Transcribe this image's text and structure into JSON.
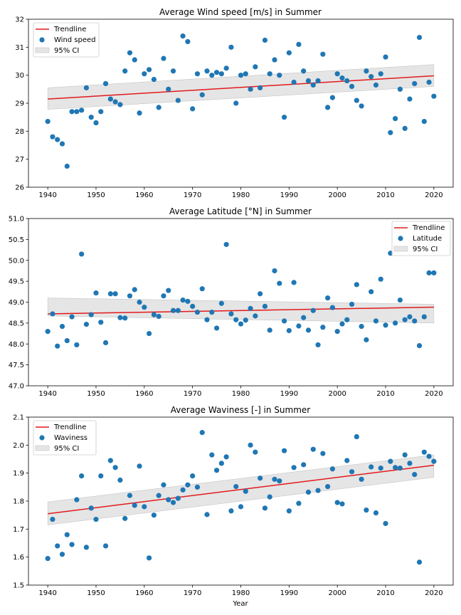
{
  "figure": {
    "xlabel": "Year"
  },
  "chart_data": [
    {
      "type": "scatter",
      "title": "Average Wind speed [m/s] in Summer",
      "xlabel": "",
      "ylabel": "",
      "xlim": [
        1936,
        2024
      ],
      "ylim": [
        26,
        32
      ],
      "xticks": [
        1940,
        1950,
        1960,
        1970,
        1980,
        1990,
        2000,
        2010,
        2020
      ],
      "yticks": [
        26,
        27,
        28,
        29,
        30,
        31,
        32
      ],
      "ytick_labels": [
        "26",
        "27",
        "28",
        "29",
        "30",
        "31",
        "32"
      ],
      "grid": false,
      "legend_position": "upper-left",
      "legend": {
        "trend": "Trendline",
        "scatter": "Wind speed",
        "ci": "95% CI"
      },
      "colors": {
        "points": "#1f77b4",
        "trend": "#e31a1c",
        "ci": "#d3d3d3"
      },
      "trend": {
        "x": [
          1940,
          2020
        ],
        "y": [
          29.15,
          29.98
        ]
      },
      "ci": {
        "x": [
          1940,
          2020
        ],
        "lower": [
          28.78,
          29.6
        ],
        "upper": [
          29.55,
          30.38
        ]
      },
      "points": {
        "x": [
          1940,
          1941,
          1942,
          1943,
          1944,
          1945,
          1946,
          1947,
          1948,
          1949,
          1950,
          1951,
          1952,
          1953,
          1954,
          1955,
          1956,
          1957,
          1958,
          1959,
          1960,
          1961,
          1962,
          1963,
          1964,
          1965,
          1966,
          1967,
          1968,
          1969,
          1970,
          1971,
          1972,
          1973,
          1974,
          1975,
          1976,
          1977,
          1978,
          1979,
          1980,
          1981,
          1982,
          1983,
          1984,
          1985,
          1986,
          1987,
          1988,
          1989,
          1990,
          1991,
          1992,
          1993,
          1994,
          1995,
          1996,
          1997,
          1998,
          1999,
          2000,
          2001,
          2002,
          2003,
          2004,
          2005,
          2006,
          2007,
          2008,
          2009,
          2010,
          2011,
          2012,
          2013,
          2014,
          2015,
          2016,
          2017,
          2018,
          2019,
          2020
        ],
        "y": [
          28.35,
          27.8,
          27.7,
          27.55,
          26.75,
          28.7,
          28.7,
          28.75,
          29.55,
          28.5,
          28.3,
          28.7,
          29.7,
          29.15,
          29.05,
          28.95,
          30.15,
          30.8,
          30.55,
          28.65,
          30.05,
          30.2,
          29.85,
          28.85,
          30.6,
          29.5,
          30.15,
          29.1,
          31.4,
          31.2,
          28.8,
          30.05,
          29.3,
          30.15,
          30.0,
          30.1,
          30.05,
          30.25,
          31.0,
          29.0,
          30.0,
          30.05,
          29.5,
          30.3,
          29.55,
          31.25,
          30.05,
          30.55,
          30.0,
          28.5,
          30.8,
          29.75,
          31.1,
          30.15,
          29.8,
          29.65,
          29.8,
          30.75,
          28.85,
          29.2,
          30.05,
          29.9,
          29.8,
          29.6,
          29.1,
          28.9,
          30.15,
          29.95,
          29.65,
          30.05,
          30.65,
          27.95,
          28.45,
          29.5,
          28.1,
          29.15,
          29.7,
          31.35,
          28.35,
          29.75,
          29.25
        ]
      }
    },
    {
      "type": "scatter",
      "title": "Average Latitude [°N] in Summer",
      "xlabel": "",
      "ylabel": "",
      "xlim": [
        1936,
        2024
      ],
      "ylim": [
        47.0,
        51.0
      ],
      "xticks": [
        1940,
        1950,
        1960,
        1970,
        1980,
        1990,
        2000,
        2010,
        2020
      ],
      "yticks": [
        47.0,
        47.5,
        48.0,
        48.5,
        49.0,
        49.5,
        50.0,
        50.5,
        51.0
      ],
      "ytick_labels": [
        "47.0",
        "47.5",
        "48.0",
        "48.5",
        "49.0",
        "49.5",
        "50.0",
        "50.5",
        "51.0"
      ],
      "grid": false,
      "legend_position": "upper-right",
      "legend": {
        "trend": "Trendline",
        "scatter": "Latitude",
        "ci": "95% CI"
      },
      "colors": {
        "points": "#1f77b4",
        "trend": "#e31a1c",
        "ci": "#d3d3d3"
      },
      "trend": {
        "x": [
          1940,
          2020
        ],
        "y": [
          48.72,
          48.88
        ]
      },
      "ci": {
        "x": [
          2020,
          1940
        ],
        "lower": [
          48.5,
          48.67
        ],
        "upper": [
          48.95,
          49.1
        ]
      },
      "points": {
        "x": [
          1940,
          1941,
          1942,
          1943,
          1944,
          1945,
          1946,
          1947,
          1948,
          1949,
          1950,
          1951,
          1952,
          1953,
          1954,
          1955,
          1956,
          1957,
          1958,
          1959,
          1960,
          1961,
          1962,
          1963,
          1964,
          1965,
          1966,
          1967,
          1968,
          1969,
          1970,
          1971,
          1972,
          1973,
          1974,
          1975,
          1976,
          1977,
          1978,
          1979,
          1980,
          1981,
          1982,
          1983,
          1984,
          1985,
          1986,
          1987,
          1988,
          1989,
          1990,
          1991,
          1992,
          1993,
          1994,
          1995,
          1996,
          1997,
          1998,
          1999,
          2000,
          2001,
          2002,
          2003,
          2004,
          2005,
          2006,
          2007,
          2008,
          2009,
          2010,
          2011,
          2012,
          2013,
          2014,
          2015,
          2016,
          2017,
          2018,
          2019,
          2020
        ],
        "y": [
          48.3,
          48.72,
          47.95,
          48.42,
          48.08,
          48.65,
          47.98,
          50.15,
          48.47,
          48.7,
          49.22,
          48.52,
          48.03,
          49.2,
          49.2,
          48.63,
          48.62,
          49.15,
          49.3,
          49.0,
          48.88,
          48.25,
          48.7,
          48.66,
          49.15,
          49.28,
          48.8,
          48.8,
          49.05,
          49.02,
          48.9,
          48.76,
          49.32,
          48.58,
          48.76,
          48.38,
          48.97,
          50.38,
          48.72,
          48.58,
          48.48,
          48.57,
          48.85,
          48.67,
          49.2,
          48.9,
          48.33,
          49.75,
          49.45,
          48.55,
          48.32,
          49.47,
          48.43,
          48.63,
          48.33,
          48.8,
          47.98,
          48.4,
          49.1,
          48.87,
          48.3,
          48.48,
          48.58,
          48.95,
          49.42,
          48.42,
          48.1,
          49.25,
          48.55,
          49.55,
          48.45,
          50.17,
          48.5,
          49.05,
          48.58,
          48.65,
          48.55,
          47.96,
          48.65,
          49.7,
          49.7
        ]
      }
    },
    {
      "type": "scatter",
      "title": "Average Waviness [-] in Summer",
      "xlabel": "Year",
      "ylabel": "",
      "xlim": [
        1936,
        2024
      ],
      "ylim": [
        1.5,
        2.1
      ],
      "xticks": [
        1940,
        1950,
        1960,
        1970,
        1980,
        1990,
        2000,
        2010,
        2020
      ],
      "yticks": [
        1.5,
        1.6,
        1.7,
        1.8,
        1.9,
        2.0,
        2.1
      ],
      "ytick_labels": [
        "1.5",
        "1.6",
        "1.7",
        "1.8",
        "1.9",
        "2.0",
        "2.1"
      ],
      "grid": false,
      "legend_position": "upper-left",
      "legend": {
        "trend": "Trendline",
        "scatter": "Waviness",
        "ci": "95% CI"
      },
      "colors": {
        "points": "#1f77b4",
        "trend": "#e31a1c",
        "ci": "#d3d3d3"
      },
      "trend": {
        "x": [
          1940,
          2020
        ],
        "y": [
          1.755,
          1.928
        ]
      },
      "ci": {
        "x": [
          1940,
          2020
        ],
        "lower": [
          1.715,
          1.885
        ],
        "upper": [
          1.797,
          1.965
        ]
      },
      "points": {
        "x": [
          1940,
          1941,
          1942,
          1943,
          1944,
          1945,
          1946,
          1947,
          1948,
          1949,
          1950,
          1951,
          1952,
          1953,
          1954,
          1955,
          1956,
          1957,
          1958,
          1959,
          1960,
          1961,
          1962,
          1963,
          1964,
          1965,
          1966,
          1967,
          1968,
          1969,
          1970,
          1971,
          1972,
          1973,
          1974,
          1975,
          1976,
          1977,
          1978,
          1979,
          1980,
          1981,
          1982,
          1983,
          1984,
          1985,
          1986,
          1987,
          1988,
          1989,
          1990,
          1991,
          1992,
          1993,
          1994,
          1995,
          1996,
          1997,
          1998,
          1999,
          2000,
          2001,
          2002,
          2003,
          2004,
          2005,
          2006,
          2007,
          2008,
          2009,
          2010,
          2011,
          2012,
          2013,
          2014,
          2015,
          2016,
          2017,
          2018,
          2019,
          2020
        ],
        "y": [
          1.595,
          1.735,
          1.64,
          1.61,
          1.68,
          1.645,
          1.805,
          1.89,
          1.635,
          1.775,
          1.735,
          1.89,
          1.64,
          1.945,
          1.92,
          1.875,
          1.738,
          1.82,
          1.785,
          1.925,
          1.78,
          1.597,
          1.75,
          1.82,
          1.858,
          1.805,
          1.795,
          1.81,
          1.84,
          1.858,
          1.89,
          1.85,
          2.045,
          1.752,
          1.965,
          1.91,
          1.935,
          1.958,
          1.765,
          1.852,
          1.78,
          1.835,
          2.0,
          1.975,
          1.882,
          1.775,
          1.815,
          1.878,
          1.872,
          1.98,
          1.765,
          1.92,
          1.792,
          1.93,
          1.832,
          1.985,
          1.838,
          1.97,
          1.852,
          1.915,
          1.795,
          1.79,
          1.945,
          1.905,
          2.03,
          1.878,
          1.768,
          1.922,
          1.758,
          1.918,
          1.72,
          1.942,
          1.92,
          1.918,
          1.965,
          1.935,
          1.895,
          1.582,
          1.975,
          1.96,
          1.942
        ]
      }
    }
  ]
}
